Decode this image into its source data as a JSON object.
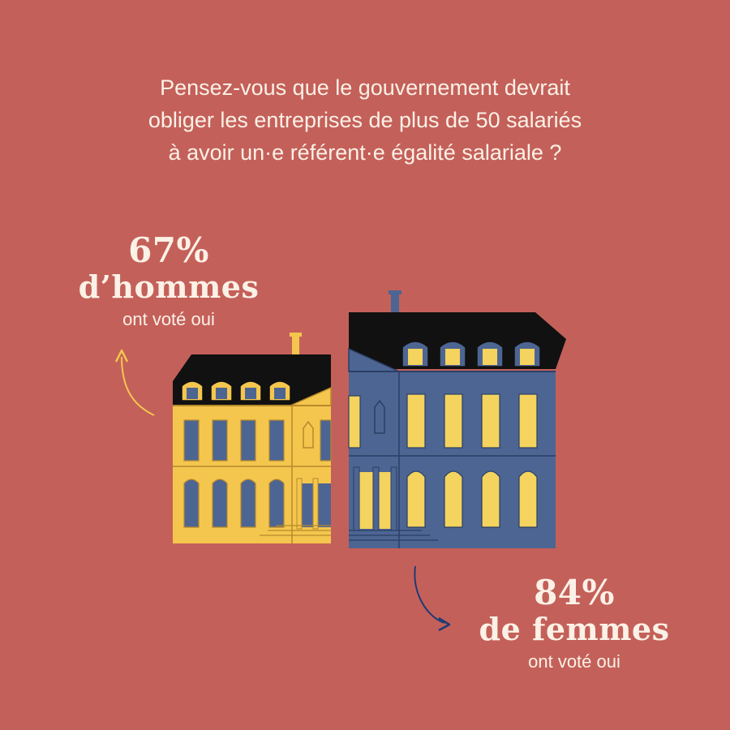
{
  "question": {
    "line1": "Pensez-vous que le gouvernement devrait",
    "line2": "obliger les entreprises de plus de 50 salariés",
    "line3": "à avoir un·e référent·e égalité salariale ?"
  },
  "men": {
    "percent": "67%",
    "group": "d’hommes",
    "voted": "ont voté oui",
    "color": "#f4c64e"
  },
  "women": {
    "percent": "84%",
    "group": "de femmes",
    "voted": "ont voté oui",
    "color": "#4d6592"
  },
  "colors": {
    "background": "#c4605a",
    "text": "#fbf1e6",
    "roof": "#111111",
    "window_light": "#f4d35e"
  }
}
